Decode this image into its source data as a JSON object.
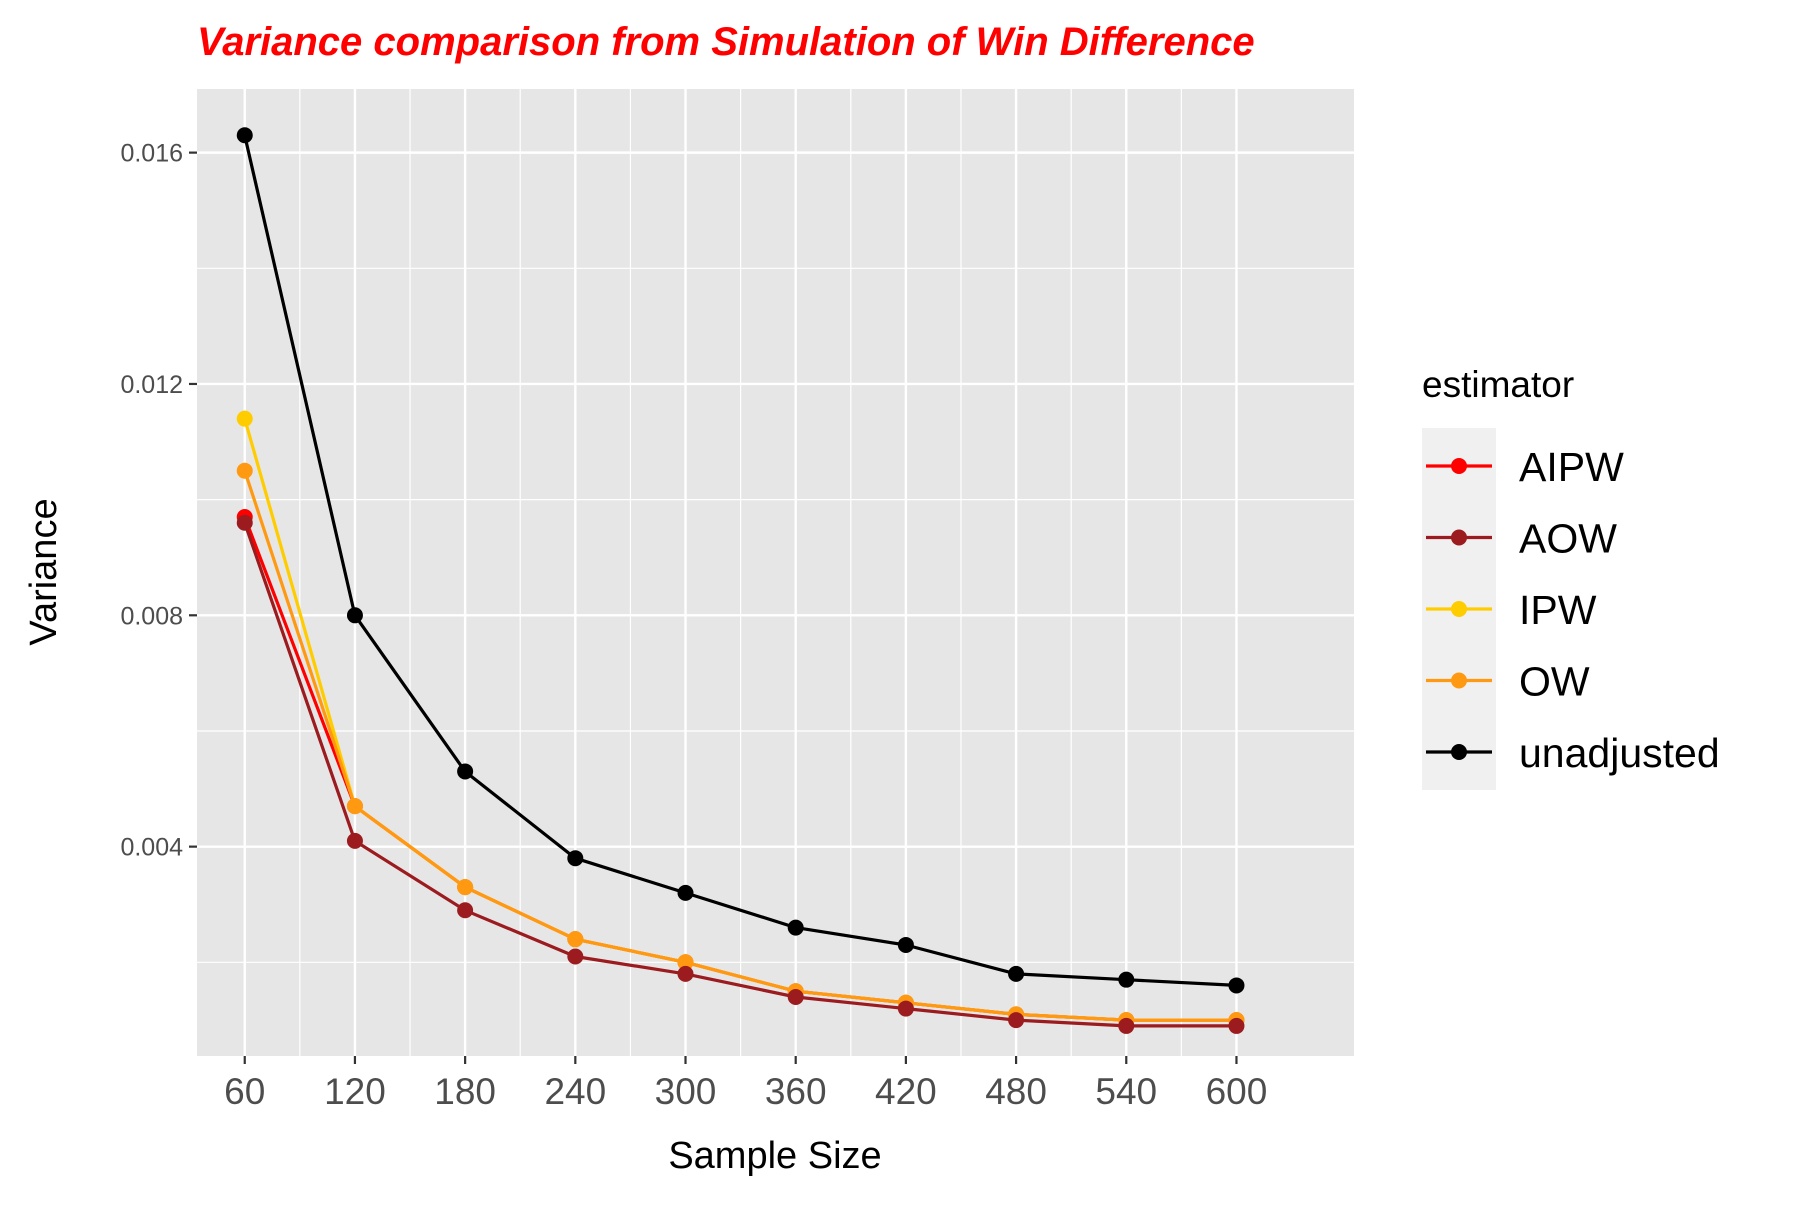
{
  "chart_data": {
    "type": "line",
    "title": "Variance comparison from Simulation of Win Difference",
    "xlabel": "Sample Size",
    "ylabel": "Variance",
    "x": [
      60,
      120,
      180,
      240,
      300,
      360,
      420,
      480,
      540,
      600
    ],
    "x_tick_labels": [
      "60",
      "120",
      "180",
      "240",
      "300",
      "360",
      "420",
      "480",
      "540",
      "600"
    ],
    "y_ticks": [
      0.004,
      0.008,
      0.012,
      0.016
    ],
    "y_tick_labels": [
      "0.004",
      "0.008",
      "0.012",
      "0.016"
    ],
    "xlim": [
      34,
      664
    ],
    "ylim": [
      0.00038,
      0.0171
    ],
    "grid": true,
    "legend": {
      "title": "estimator",
      "placement": "right"
    },
    "series": [
      {
        "name": "AIPW",
        "color": "#ff0000",
        "values": [
          0.0097,
          0.0047,
          0.0033,
          0.0024,
          0.002,
          0.0015,
          0.0013,
          0.0011,
          0.001,
          0.001
        ]
      },
      {
        "name": "AOW",
        "color": "#9b1b1f",
        "values": [
          0.0096,
          0.0041,
          0.0029,
          0.0021,
          0.0018,
          0.0014,
          0.0012,
          0.001,
          0.0009,
          0.0009
        ]
      },
      {
        "name": "IPW",
        "color": "#ffcc00",
        "values": [
          0.0114,
          0.0047,
          0.0033,
          0.0024,
          0.002,
          0.0015,
          0.0013,
          0.0011,
          0.001,
          0.001
        ]
      },
      {
        "name": "OW",
        "color": "#ff9912",
        "values": [
          0.0105,
          0.0047,
          0.0033,
          0.0024,
          0.002,
          0.0015,
          0.0013,
          0.0011,
          0.001,
          0.001
        ]
      },
      {
        "name": "unadjusted",
        "color": "#000000",
        "values": [
          0.0163,
          0.008,
          0.0053,
          0.0038,
          0.0032,
          0.0026,
          0.0023,
          0.0018,
          0.0017,
          0.0016
        ]
      }
    ]
  },
  "colors": {
    "title": "#ff0000",
    "panel_background": "#e6e6e6",
    "grid": "#ffffff",
    "legend_background": "#f0f0f0"
  }
}
